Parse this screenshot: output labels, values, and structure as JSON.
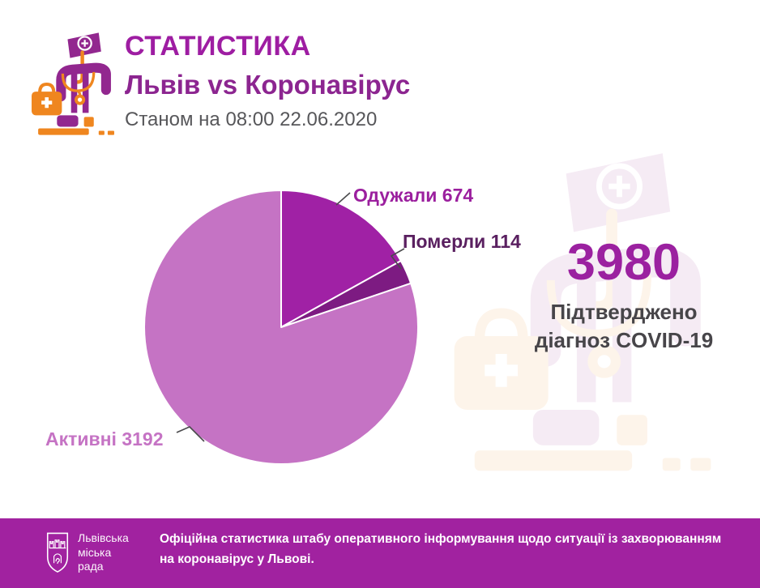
{
  "header": {
    "title": "СТАТИСТИКА",
    "subtitle": "Львів vs Коронавірус",
    "as_of": "Станом на 08:00 22.06.2020"
  },
  "chart_data": {
    "type": "pie",
    "title": "Львів vs Коронавірус",
    "total": 3980,
    "start_angle_deg": 0,
    "direction": "clockwise",
    "separator_color": "#ffffff",
    "slices": [
      {
        "key": "recovered",
        "label": "Одужали",
        "value": 674,
        "display": "Одужали 674",
        "color": "#a021a5",
        "label_color": "#9b1f9e"
      },
      {
        "key": "died",
        "label": "Померли",
        "value": 114,
        "display": "Померли 114",
        "color": "#7d1b82",
        "label_color": "#5a2060"
      },
      {
        "key": "active",
        "label": "Активні",
        "value": 3192,
        "display": "Активні 3192",
        "color": "#c573c4",
        "label_color": "#c573c4"
      }
    ]
  },
  "stat": {
    "value": "3980",
    "caption_line1": "Підтверджено",
    "caption_line2": "діагноз COVID-19"
  },
  "footer": {
    "org_line1": "Львівська",
    "org_line2": "міська",
    "org_line3": "рада",
    "text": "Офіційна статистика штабу оперативного інформування щодо ситуації із захворюванням на коронавірус у Львові.",
    "bg_color": "#a122a0"
  },
  "colors": {
    "accent_magenta": "#9e1da2",
    "accent_purple": "#8c2590",
    "orange": "#ef861f",
    "icon_purple": "#92278f",
    "gray_text": "#57575a",
    "dark_caption": "#474549"
  }
}
